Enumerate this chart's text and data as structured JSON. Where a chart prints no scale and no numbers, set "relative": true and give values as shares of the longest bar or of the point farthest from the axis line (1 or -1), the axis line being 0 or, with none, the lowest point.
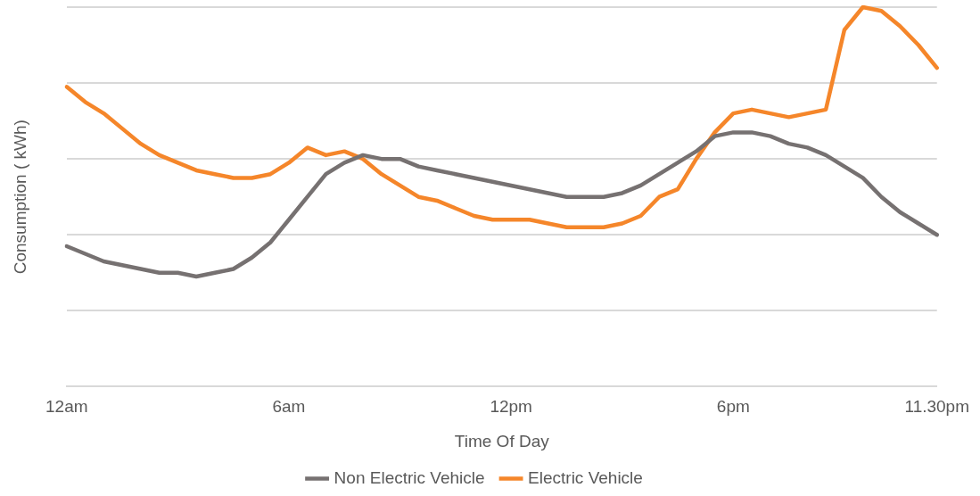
{
  "chart_data": {
    "type": "line",
    "relative": true,
    "xlabel": "Time Of Day",
    "ylabel": "Consumption ( kWh)",
    "categories": [
      "12am",
      null,
      null,
      null,
      null,
      null,
      null,
      null,
      null,
      null,
      null,
      null,
      "6am",
      null,
      null,
      null,
      null,
      null,
      null,
      null,
      null,
      null,
      null,
      null,
      "12pm",
      null,
      null,
      null,
      null,
      null,
      null,
      null,
      null,
      null,
      null,
      null,
      "6pm",
      null,
      null,
      null,
      null,
      null,
      null,
      null,
      null,
      null,
      null,
      "11.30pm"
    ],
    "series": [
      {
        "name": "Non Electric Vehicle",
        "color": "#767171",
        "values": [
          0.37,
          0.35,
          0.33,
          0.32,
          0.31,
          0.3,
          0.3,
          0.29,
          0.3,
          0.31,
          0.34,
          0.38,
          0.44,
          0.5,
          0.56,
          0.59,
          0.61,
          0.6,
          0.6,
          0.58,
          0.57,
          0.56,
          0.55,
          0.54,
          0.53,
          0.52,
          0.51,
          0.5,
          0.5,
          0.5,
          0.51,
          0.53,
          0.56,
          0.59,
          0.62,
          0.66,
          0.67,
          0.67,
          0.66,
          0.64,
          0.63,
          0.61,
          0.58,
          0.55,
          0.5,
          0.46,
          0.43,
          0.4
        ]
      },
      {
        "name": "Electric Vehicle",
        "color": "#f5862a",
        "values": [
          0.79,
          0.75,
          0.72,
          0.68,
          0.64,
          0.61,
          0.59,
          0.57,
          0.56,
          0.55,
          0.55,
          0.56,
          0.59,
          0.63,
          0.61,
          0.62,
          0.6,
          0.56,
          0.53,
          0.5,
          0.49,
          0.47,
          0.45,
          0.44,
          0.44,
          0.44,
          0.43,
          0.42,
          0.42,
          0.42,
          0.43,
          0.45,
          0.5,
          0.52,
          0.6,
          0.67,
          0.72,
          0.73,
          0.72,
          0.71,
          0.72,
          0.73,
          0.94,
          1,
          0.99,
          0.95,
          0.9,
          0.84
        ]
      }
    ],
    "grid": "y",
    "legend": "bottom",
    "marker": "none",
    "line_style": "solid"
  }
}
